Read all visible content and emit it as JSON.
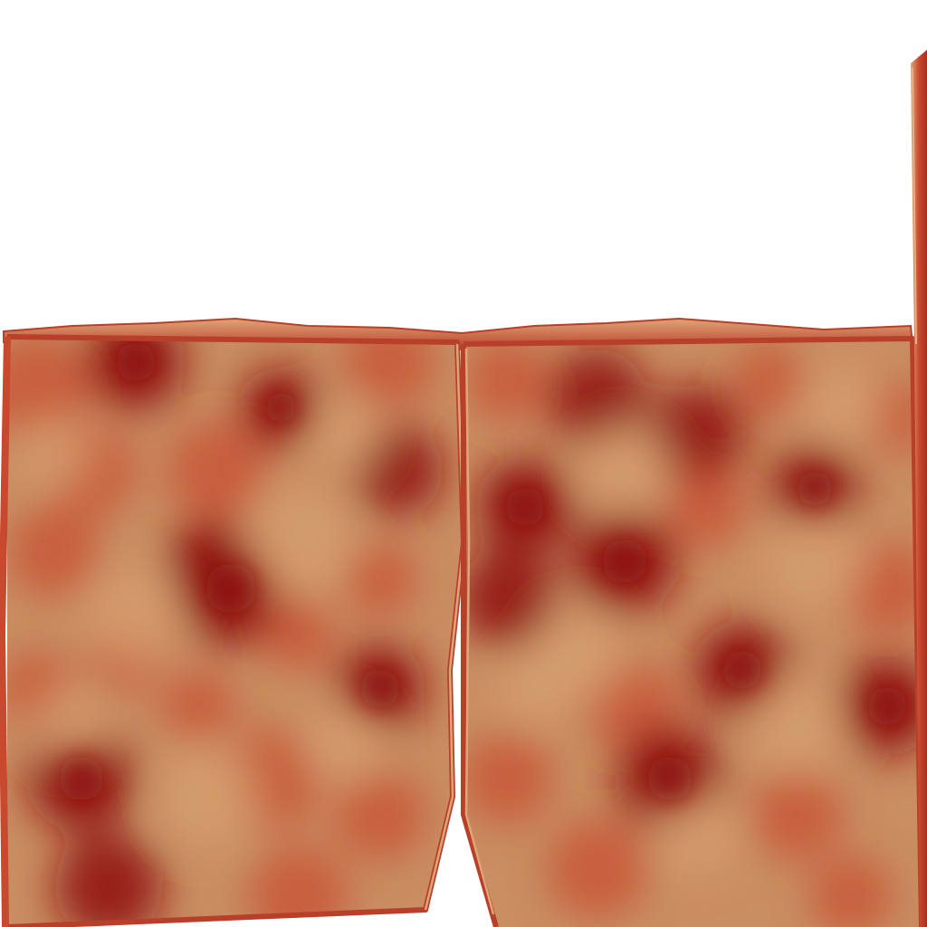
{
  "scene": {
    "background_color": "#ffffff",
    "colors": {
      "base_tan": "#c98e62",
      "light_tan": "#d6a070",
      "mid_red": "#c8492e",
      "dark_red": "#8e0c08",
      "edge_highlight": "#e0a577",
      "edge_shadow": "#a8301e"
    },
    "surface_texture": "mottled-red-tan-noise",
    "panels": [
      {
        "name": "left-panel",
        "side": "left"
      },
      {
        "name": "right-panel",
        "side": "right"
      }
    ],
    "post": {
      "name": "right-edge-post"
    }
  }
}
